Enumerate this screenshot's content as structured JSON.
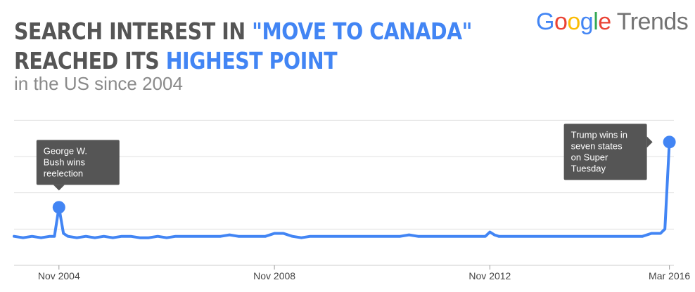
{
  "headline": {
    "line1_part1": "SEARCH INTEREST IN ",
    "line1_part2": "\"MOVE TO CANADA\"",
    "line2_part1": "REACHED ITS ",
    "line2_part2": "HIGHEST POINT"
  },
  "subtitle": "in the US since 2004",
  "logo": {
    "letters": [
      {
        "ch": "G",
        "color": "#4285f4"
      },
      {
        "ch": "o",
        "color": "#ea4335"
      },
      {
        "ch": "o",
        "color": "#fbbc05"
      },
      {
        "ch": "g",
        "color": "#4285f4"
      },
      {
        "ch": "l",
        "color": "#34a853"
      },
      {
        "ch": "e",
        "color": "#ea4335"
      }
    ],
    "suffix": "Trends"
  },
  "colors": {
    "line": "#4285f4",
    "highlight": "#4285f4",
    "annotation_bg": "#555555",
    "grid": "#e0e0e0"
  },
  "chart_data": {
    "type": "line",
    "title": "",
    "xlabel": "",
    "ylabel": "",
    "x_ticks": [
      "Nov 2004",
      "Nov 2008",
      "Nov 2012",
      "Mar 2016"
    ],
    "x_tick_values": [
      0,
      48,
      96,
      136
    ],
    "xlim": [
      -10,
      137
    ],
    "ylim": [
      0,
      120
    ],
    "grid": true,
    "gridlines_y": [
      25,
      50,
      75,
      100
    ],
    "series": [
      {
        "name": "",
        "x": [
          -10,
          -8,
          -6,
          -4,
          -2,
          -1,
          0,
          1,
          2,
          4,
          6,
          8,
          10,
          12,
          14,
          16,
          18,
          20,
          22,
          24,
          26,
          28,
          30,
          32,
          34,
          36,
          38,
          40,
          42,
          44,
          46,
          48,
          50,
          52,
          54,
          56,
          58,
          60,
          62,
          64,
          66,
          68,
          70,
          72,
          74,
          76,
          78,
          80,
          82,
          84,
          86,
          88,
          90,
          92,
          94,
          95,
          96,
          97,
          98,
          100,
          102,
          104,
          106,
          108,
          110,
          112,
          114,
          116,
          118,
          120,
          122,
          124,
          126,
          128,
          130,
          132,
          133,
          134,
          135,
          136
        ],
        "values": [
          20,
          19,
          20,
          19,
          20,
          20,
          40,
          22,
          20,
          19,
          20,
          19,
          20,
          19,
          20,
          20,
          19,
          19,
          20,
          19,
          20,
          20,
          20,
          20,
          20,
          20,
          21,
          20,
          20,
          20,
          20,
          22,
          22,
          20,
          19,
          20,
          20,
          20,
          20,
          20,
          20,
          20,
          20,
          20,
          20,
          20,
          21,
          20,
          20,
          20,
          20,
          20,
          20,
          20,
          20,
          20,
          23,
          21,
          20,
          20,
          20,
          20,
          20,
          20,
          20,
          20,
          20,
          20,
          20,
          20,
          20,
          20,
          20,
          20,
          20,
          22,
          22,
          22,
          25,
          85
        ]
      }
    ],
    "highlights": [
      {
        "x": 0,
        "y": 40,
        "label_lines": [
          "George W.",
          "Bush wins",
          "reelection"
        ]
      },
      {
        "x": 136,
        "y": 85,
        "label_lines": [
          "Trump wins in",
          "seven states",
          "on Super",
          "Tuesday"
        ]
      }
    ]
  }
}
